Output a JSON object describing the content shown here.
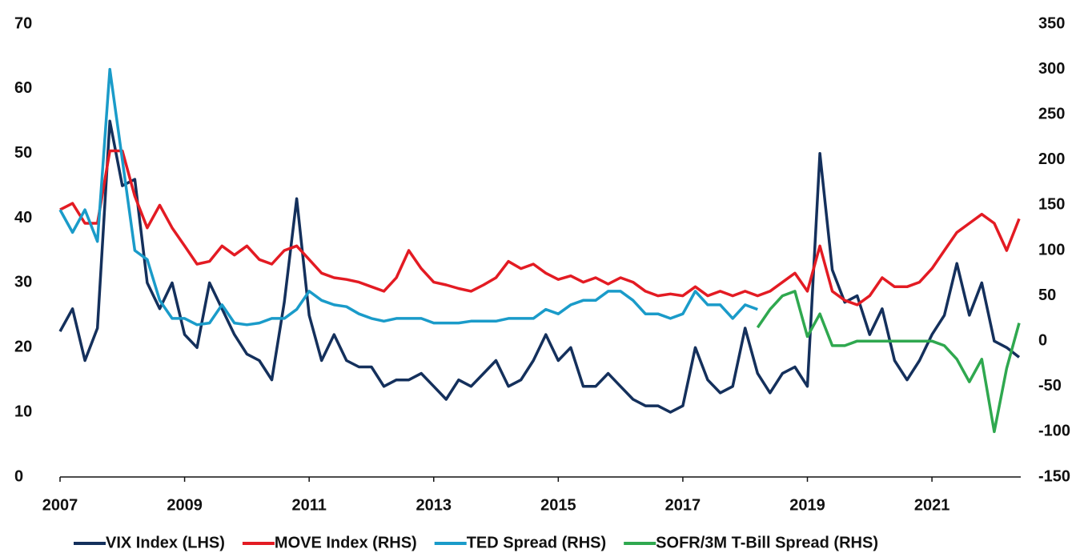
{
  "chart_data": {
    "type": "line",
    "x": [
      2007.0,
      2007.2,
      2007.4,
      2007.6,
      2007.8,
      2008.0,
      2008.2,
      2008.4,
      2008.6,
      2008.8,
      2009.0,
      2009.2,
      2009.4,
      2009.6,
      2009.8,
      2010.0,
      2010.2,
      2010.4,
      2010.6,
      2010.8,
      2011.0,
      2011.2,
      2011.4,
      2011.6,
      2011.8,
      2012.0,
      2012.2,
      2012.4,
      2012.6,
      2012.8,
      2013.0,
      2013.2,
      2013.4,
      2013.6,
      2013.8,
      2014.0,
      2014.2,
      2014.4,
      2014.6,
      2014.8,
      2015.0,
      2015.2,
      2015.4,
      2015.6,
      2015.8,
      2016.0,
      2016.2,
      2016.4,
      2016.6,
      2016.8,
      2017.0,
      2017.2,
      2017.4,
      2017.6,
      2017.8,
      2018.0,
      2018.2,
      2018.4,
      2018.6,
      2018.8,
      2019.0,
      2019.2,
      2019.4,
      2019.6,
      2019.8,
      2020.0,
      2020.2,
      2020.4,
      2020.6,
      2020.8,
      2021.0,
      2021.2,
      2021.4,
      2021.6,
      2021.8,
      2022.0,
      2022.2,
      2022.4
    ],
    "xlim": [
      2007,
      2022.4
    ],
    "xticks": [
      2007,
      2009,
      2011,
      2013,
      2015,
      2017,
      2019,
      2021
    ],
    "ylim": [
      0,
      70
    ],
    "yticks": [
      0,
      10,
      20,
      30,
      40,
      50,
      60,
      70
    ],
    "y2lim": [
      -150,
      350
    ],
    "y2ticks": [
      -150,
      -100,
      -50,
      0,
      50,
      100,
      150,
      200,
      250,
      300,
      350
    ],
    "series": [
      {
        "name": "VIX Index (LHS)",
        "color": "#14305c",
        "axis": "y",
        "values": [
          22.5,
          26,
          18,
          23,
          55,
          45,
          46,
          30,
          26,
          30,
          22,
          20,
          30,
          26,
          22,
          19,
          18,
          15,
          27,
          43,
          25,
          18,
          22,
          18,
          17,
          17,
          14,
          15,
          15,
          16,
          14,
          12,
          15,
          14,
          16,
          18,
          14,
          15,
          18,
          22,
          18,
          20,
          14,
          14,
          16,
          14,
          12,
          11,
          11,
          10,
          11,
          20,
          15,
          13,
          14,
          23,
          16,
          13,
          16,
          17,
          14,
          50,
          32,
          27,
          28,
          22,
          26,
          18,
          15,
          18,
          22,
          25,
          33,
          25,
          30,
          21,
          20,
          18.5
        ]
      },
      {
        "name": "MOVE Index (RHS)",
        "color": "#e31b23",
        "axis": "y2",
        "values": [
          145,
          152,
          130,
          130,
          210,
          210,
          160,
          125,
          150,
          125,
          105,
          85,
          88,
          105,
          95,
          105,
          90,
          85,
          100,
          105,
          90,
          75,
          70,
          68,
          65,
          60,
          55,
          70,
          100,
          80,
          65,
          62,
          58,
          55,
          62,
          70,
          88,
          80,
          85,
          75,
          68,
          72,
          65,
          70,
          63,
          70,
          65,
          55,
          50,
          52,
          50,
          60,
          50,
          55,
          50,
          55,
          50,
          55,
          65,
          75,
          55,
          105,
          55,
          45,
          40,
          50,
          70,
          60,
          60,
          65,
          80,
          100,
          120,
          130,
          140,
          130,
          100,
          135
        ]
      },
      {
        "name": "TED Spread (RHS)",
        "color": "#1a9bc9",
        "axis": "y2",
        "values": [
          145,
          120,
          145,
          110,
          300,
          200,
          100,
          90,
          45,
          25,
          25,
          18,
          20,
          40,
          20,
          18,
          20,
          25,
          25,
          35,
          55,
          45,
          40,
          38,
          30,
          25,
          22,
          25,
          25,
          25,
          20,
          20,
          20,
          22,
          22,
          22,
          25,
          25,
          25,
          35,
          30,
          40,
          45,
          45,
          55,
          55,
          45,
          30,
          30,
          25,
          30,
          55,
          40,
          40,
          25,
          40,
          35,
          null,
          null,
          null,
          null,
          null,
          null,
          null,
          null,
          null,
          null,
          null,
          null,
          null,
          null,
          null,
          null,
          null,
          null,
          null,
          null,
          null
        ]
      },
      {
        "name": "SOFR/3M T-Bill Spread (RHS)",
        "color": "#2fa84f",
        "axis": "y2",
        "values": [
          null,
          null,
          null,
          null,
          null,
          null,
          null,
          null,
          null,
          null,
          null,
          null,
          null,
          null,
          null,
          null,
          null,
          null,
          null,
          null,
          null,
          null,
          null,
          null,
          null,
          null,
          null,
          null,
          null,
          null,
          null,
          null,
          null,
          null,
          null,
          null,
          null,
          null,
          null,
          null,
          null,
          null,
          null,
          null,
          null,
          null,
          null,
          null,
          null,
          null,
          null,
          null,
          null,
          null,
          null,
          null,
          15,
          35,
          50,
          55,
          5,
          30,
          -5,
          -5,
          0,
          0,
          0,
          0,
          0,
          0,
          0,
          -5,
          -20,
          -45,
          -20,
          -100,
          -30,
          20
        ]
      }
    ]
  }
}
